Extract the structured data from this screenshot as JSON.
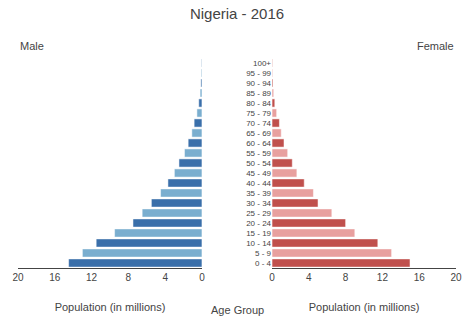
{
  "chart_data": {
    "type": "bar",
    "orientation": "horizontal",
    "title": "Nigeria - 2016",
    "xlabel": "Population (in millions)",
    "ylabel": "Age Group",
    "categories": [
      "0 - 4",
      "5 - 9",
      "10 - 14",
      "15 - 19",
      "20 - 24",
      "25 - 29",
      "30 - 34",
      "35 - 39",
      "40 - 44",
      "45 - 49",
      "50 - 54",
      "55 - 59",
      "60 - 64",
      "65 - 69",
      "70 - 74",
      "75 - 79",
      "80 - 84",
      "85 - 89",
      "90 - 94",
      "95 - 99",
      "100+"
    ],
    "series": [
      {
        "name": "Male",
        "values": [
          14.5,
          13.0,
          11.5,
          9.5,
          7.5,
          6.5,
          5.5,
          4.5,
          3.7,
          3.0,
          2.5,
          1.9,
          1.5,
          1.1,
          0.85,
          0.55,
          0.35,
          0.2,
          0.12,
          0.08,
          0.05
        ],
        "colors": [
          "#3a6faa",
          "#7aaecf",
          "#3a6faa",
          "#7aaecf",
          "#3a6faa",
          "#7aaecf",
          "#3a6faa",
          "#7aaecf",
          "#3a6faa",
          "#7aaecf",
          "#3a6faa",
          "#7aaecf",
          "#3a6faa",
          "#7aaecf",
          "#3a6faa",
          "#7aaecf",
          "#3a6faa",
          "#7aaecf",
          "#3a6faa",
          "#7aaecf",
          "#3a6faa"
        ]
      },
      {
        "name": "Female",
        "values": [
          15.0,
          13.0,
          11.5,
          9.0,
          8.0,
          6.5,
          5.0,
          4.5,
          3.5,
          2.7,
          2.2,
          1.7,
          1.3,
          1.0,
          0.8,
          0.5,
          0.3,
          0.18,
          0.1,
          0.07,
          0.05
        ],
        "colors": [
          "#c0504d",
          "#e8a09f",
          "#c0504d",
          "#e8a09f",
          "#c0504d",
          "#e8a09f",
          "#c0504d",
          "#e8a09f",
          "#c0504d",
          "#e8a09f",
          "#c0504d",
          "#e8a09f",
          "#c0504d",
          "#e8a09f",
          "#c0504d",
          "#e8a09f",
          "#c0504d",
          "#e8a09f",
          "#c0504d",
          "#e8a09f",
          "#c0504d"
        ]
      }
    ],
    "xlim": [
      0,
      20
    ],
    "xticks": [
      0,
      4,
      8,
      12,
      16,
      20
    ],
    "grid": false
  }
}
